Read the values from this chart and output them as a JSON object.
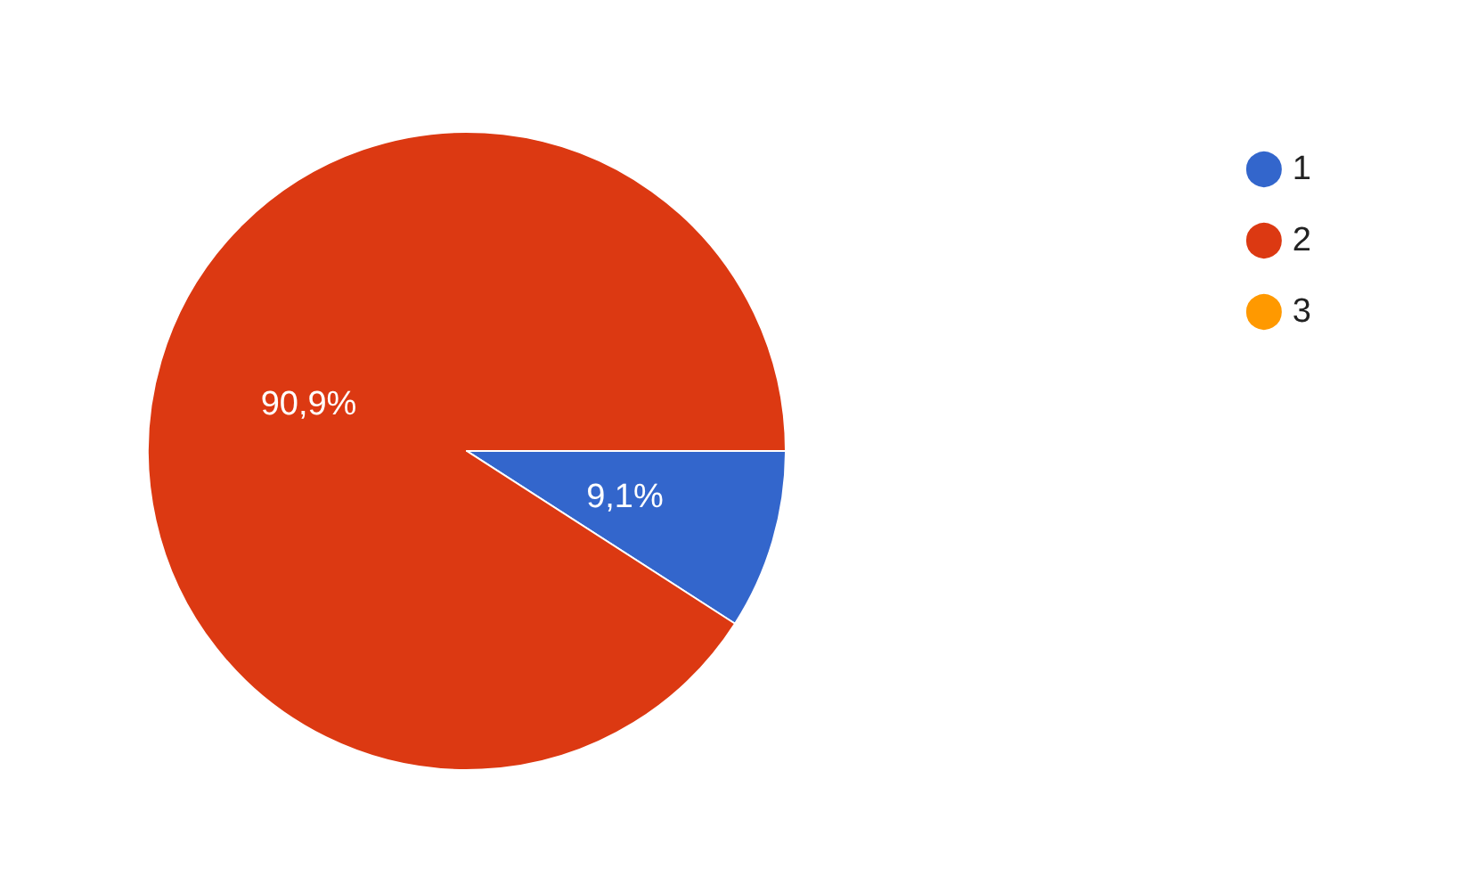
{
  "chart_data": {
    "type": "pie",
    "categories": [
      "1",
      "2",
      "3"
    ],
    "values": [
      9.1,
      90.9,
      0
    ],
    "colors": [
      "#3366cc",
      "#dc3912",
      "#ff9900"
    ],
    "value_labels": [
      "9,1%",
      "90,9%",
      null
    ],
    "legend": "top right"
  }
}
